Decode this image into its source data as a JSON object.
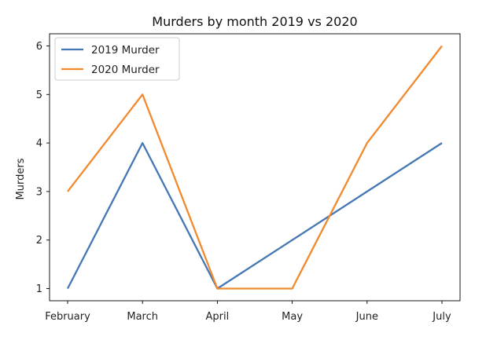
{
  "chart_data": {
    "type": "line",
    "title": "Murders by month 2019 vs 2020",
    "xlabel": "",
    "ylabel": "Murders",
    "categories": [
      "February",
      "March",
      "April",
      "May",
      "June",
      "July"
    ],
    "series": [
      {
        "name": "2019 Murder",
        "values": [
          1,
          4,
          1,
          2,
          3,
          4
        ],
        "color": "#4477b4"
      },
      {
        "name": "2020 Murder",
        "values": [
          3,
          5,
          1,
          1,
          4,
          6
        ],
        "color": "#f08a2d"
      }
    ],
    "yticks": [
      1,
      2,
      3,
      4,
      5,
      6
    ],
    "ylim": [
      0.75,
      6.25
    ],
    "grid": false,
    "legend_position": "top-left"
  }
}
